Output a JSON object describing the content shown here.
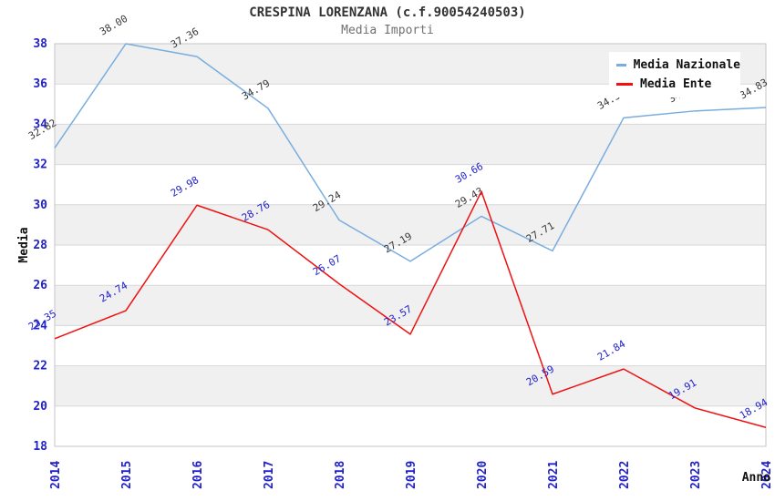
{
  "header": {
    "title": "CRESPINA LORENZANA (c.f.90054240503)",
    "subtitle": "Media Importi"
  },
  "legend": {
    "position": "top-right",
    "items": [
      {
        "label": "Media Nazionale"
      },
      {
        "label": "Media Ente"
      }
    ]
  },
  "colors": {
    "tick_blue": "#2222cc",
    "series_nazionale": "#79ade0",
    "series_ente": "#ee1111",
    "label_nazionale": "#3a3a3a",
    "label_ente": "#2222cc",
    "band_gray": "#f0f0f0",
    "gridline": "#d7d7d7",
    "plot_border": "#c6c6c6",
    "title_color": "#333333",
    "subtitle_color": "#707070"
  },
  "chart_data": {
    "type": "line",
    "title": "CRESPINA LORENZANA (c.f.90054240503)",
    "subtitle": "Media Importi",
    "xlabel": "Anno",
    "ylabel": "Media",
    "x": [
      "2014",
      "2015",
      "2016",
      "2017",
      "2018",
      "2019",
      "2020",
      "2021",
      "2022",
      "2023",
      "2024"
    ],
    "ylim": [
      18,
      38
    ],
    "ytick_step": 2,
    "grid": true,
    "banded_background": true,
    "legend_position": "top-right",
    "series": [
      {
        "name": "Media Nazionale",
        "color": "#79ade0",
        "label_color": "#3a3a3a",
        "values": [
          32.82,
          38.0,
          37.36,
          34.79,
          29.24,
          27.19,
          29.43,
          27.71,
          34.32,
          34.66,
          34.83
        ]
      },
      {
        "name": "Media Ente",
        "color": "#ee1111",
        "label_color": "#2222cc",
        "values": [
          23.35,
          24.74,
          29.98,
          28.76,
          26.07,
          23.57,
          30.66,
          20.59,
          21.84,
          19.91,
          18.94
        ]
      }
    ]
  }
}
